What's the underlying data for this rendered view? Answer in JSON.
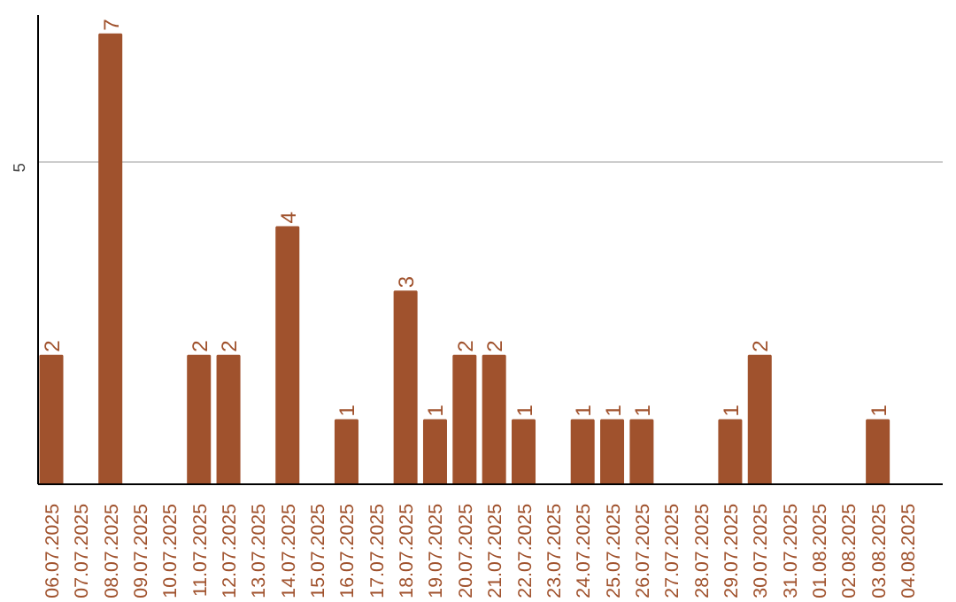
{
  "chart_data": {
    "type": "bar",
    "categories": [
      "06.07.2025",
      "07.07.2025",
      "08.07.2025",
      "09.07.2025",
      "10.07.2025",
      "11.07.2025",
      "12.07.2025",
      "13.07.2025",
      "14.07.2025",
      "15.07.2025",
      "16.07.2025",
      "17.07.2025",
      "18.07.2025",
      "19.07.2025",
      "20.07.2025",
      "21.07.2025",
      "22.07.2025",
      "23.07.2025",
      "24.07.2025",
      "25.07.2025",
      "26.07.2025",
      "27.07.2025",
      "28.07.2025",
      "29.07.2025",
      "30.07.2025",
      "31.07.2025",
      "01.08.2025",
      "02.08.2025",
      "03.08.2025",
      "04.08.2025"
    ],
    "values": [
      2,
      0,
      7,
      0,
      0,
      2,
      2,
      0,
      4,
      0,
      1,
      0,
      3,
      1,
      2,
      2,
      1,
      0,
      1,
      1,
      1,
      0,
      0,
      1,
      2,
      0,
      0,
      0,
      1,
      0
    ],
    "value_labels": [
      "2",
      null,
      "7",
      null,
      null,
      "2",
      "2",
      null,
      "4",
      null,
      "1",
      null,
      "3",
      "1",
      "2",
      "2",
      "1",
      null,
      "1",
      "1",
      "1",
      null,
      null,
      "1",
      "2",
      null,
      null,
      null,
      "1",
      null
    ],
    "color": "#a0522d",
    "ylim": [
      0,
      7.3
    ],
    "yticks": [
      5
    ],
    "grid": "y"
  }
}
